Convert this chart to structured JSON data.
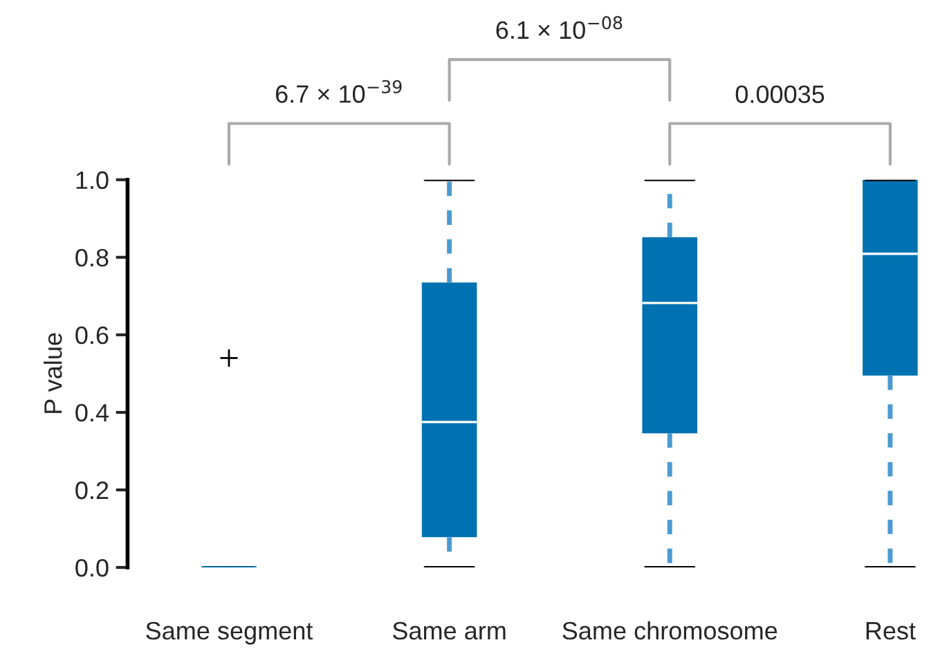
{
  "chart_data": {
    "type": "box",
    "ylabel": "P value",
    "categories": [
      "Same segment",
      "Same arm",
      "Same chromosome",
      "Rest"
    ],
    "boxes": [
      {
        "low": 0,
        "q1": 0,
        "median": 0,
        "q3": 0,
        "high": 0,
        "outliers": [
          0.54
        ]
      },
      {
        "low": 0,
        "q1": 0.078,
        "median": 0.375,
        "q3": 0.735,
        "high": 1.0
      },
      {
        "low": 0,
        "q1": 0.346,
        "median": 0.682,
        "q3": 0.852,
        "high": 1.0
      },
      {
        "low": 0,
        "q1": 0.495,
        "median": 0.809,
        "q3": 1.0,
        "high": 1.0
      }
    ],
    "color": "#0072b2",
    "ylim": [
      0,
      1.0
    ],
    "yticks": [
      {
        "value": 0,
        "label": "0.0"
      },
      {
        "value": 0.2,
        "label": "0.2"
      },
      {
        "value": 0.4,
        "label": "0.4"
      },
      {
        "value": 0.6,
        "label": "0.6"
      },
      {
        "value": 0.8,
        "label": "0.8"
      },
      {
        "value": 1.0,
        "label": "1.0"
      }
    ],
    "grid": false,
    "legend": false,
    "annotations": [
      "6.7 × 10$^{−39}$",
      "6.1 × 10$^{−08}$",
      "0.00035"
    ]
  }
}
